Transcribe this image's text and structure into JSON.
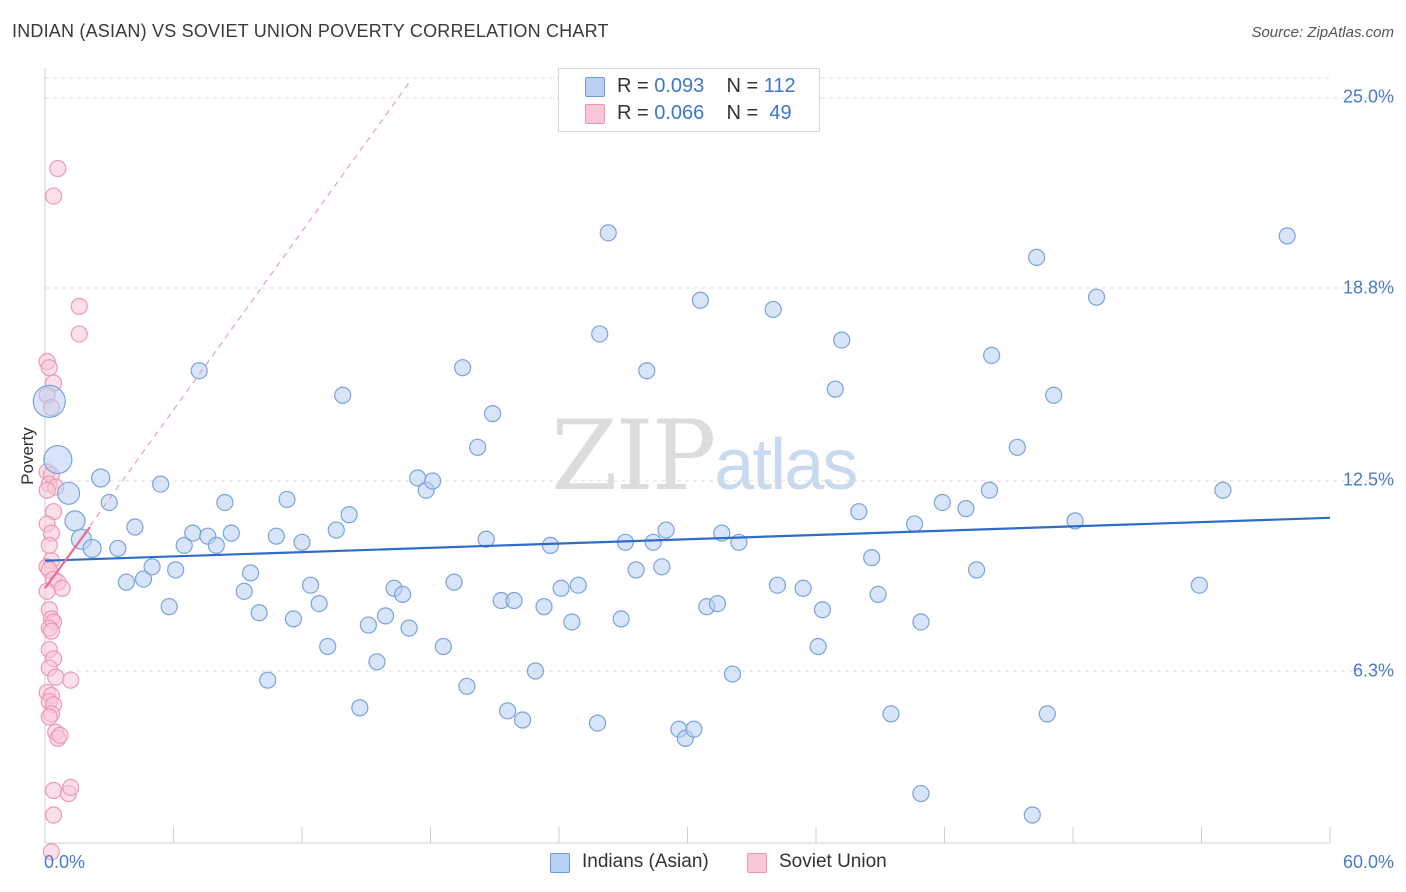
{
  "title": "INDIAN (ASIAN) VS SOVIET UNION POVERTY CORRELATION CHART",
  "source": "Source: ZipAtlas.com",
  "watermark": {
    "zip": "ZIP",
    "atlas": "atlas"
  },
  "colors": {
    "blue": "#4a7cc7",
    "blue_fill": "#b8d0f2",
    "pink": "#e86b91",
    "pink_fill": "#f9c6d6",
    "grid": "#dcdcdc"
  },
  "legend": {
    "series1": {
      "r_label": "R = ",
      "r_value": "0.093",
      "n_label": "N = ",
      "n_value": "112"
    },
    "series2": {
      "r_label": "R = ",
      "r_value": "0.066",
      "n_label": "N = ",
      "n_value": "49"
    }
  },
  "chart_data": {
    "type": "scatter",
    "title": "INDIAN (ASIAN) VS SOVIET UNION POVERTY CORRELATION CHART",
    "xlabel": "",
    "ylabel": "Poverty",
    "xlim": [
      0,
      60
    ],
    "ylim": [
      0,
      26
    ],
    "x_tick_labels": [
      "0.0%",
      "60.0%"
    ],
    "y_ticks": [
      6.3,
      12.5,
      18.8,
      25.0
    ],
    "y_tick_labels": [
      "6.3%",
      "12.5%",
      "18.8%",
      "25.0%"
    ],
    "grid": true,
    "legend_position": "top-center",
    "series": [
      {
        "name": "Indians (Asian)",
        "color": "#4a7cc7",
        "r": 0.093,
        "n": 112,
        "trend": {
          "x": [
            0,
            60
          ],
          "y": [
            9.9,
            11.3
          ]
        },
        "points": [
          {
            "x": 0.2,
            "y": 15.1,
            "s": 16
          },
          {
            "x": 0.6,
            "y": 13.2,
            "s": 14
          },
          {
            "x": 1.1,
            "y": 12.1,
            "s": 11
          },
          {
            "x": 1.4,
            "y": 11.2,
            "s": 10
          },
          {
            "x": 1.7,
            "y": 10.6,
            "s": 10
          },
          {
            "x": 2.2,
            "y": 10.3,
            "s": 9
          },
          {
            "x": 2.6,
            "y": 12.6,
            "s": 9
          },
          {
            "x": 3.0,
            "y": 11.8,
            "s": 8
          },
          {
            "x": 3.4,
            "y": 10.3,
            "s": 8
          },
          {
            "x": 3.8,
            "y": 9.2,
            "s": 8
          },
          {
            "x": 4.2,
            "y": 11.0,
            "s": 8
          },
          {
            "x": 4.6,
            "y": 9.3,
            "s": 8
          },
          {
            "x": 5.0,
            "y": 9.7,
            "s": 8
          },
          {
            "x": 5.4,
            "y": 12.4,
            "s": 8
          },
          {
            "x": 5.8,
            "y": 8.4,
            "s": 8
          },
          {
            "x": 6.1,
            "y": 9.6,
            "s": 8
          },
          {
            "x": 6.5,
            "y": 10.4,
            "s": 8
          },
          {
            "x": 6.9,
            "y": 10.8,
            "s": 8
          },
          {
            "x": 7.2,
            "y": 16.1,
            "s": 8
          },
          {
            "x": 7.6,
            "y": 10.7,
            "s": 8
          },
          {
            "x": 8.0,
            "y": 10.4,
            "s": 8
          },
          {
            "x": 8.4,
            "y": 11.8,
            "s": 8
          },
          {
            "x": 8.7,
            "y": 10.8,
            "s": 8
          },
          {
            "x": 9.3,
            "y": 8.9,
            "s": 8
          },
          {
            "x": 9.6,
            "y": 9.5,
            "s": 8
          },
          {
            "x": 10.0,
            "y": 8.2,
            "s": 8
          },
          {
            "x": 10.4,
            "y": 6.0,
            "s": 8
          },
          {
            "x": 10.8,
            "y": 10.7,
            "s": 8
          },
          {
            "x": 11.3,
            "y": 11.9,
            "s": 8
          },
          {
            "x": 11.6,
            "y": 8.0,
            "s": 8
          },
          {
            "x": 12.0,
            "y": 10.5,
            "s": 8
          },
          {
            "x": 12.4,
            "y": 9.1,
            "s": 8
          },
          {
            "x": 12.8,
            "y": 8.5,
            "s": 8
          },
          {
            "x": 13.2,
            "y": 7.1,
            "s": 8
          },
          {
            "x": 13.6,
            "y": 10.9,
            "s": 8
          },
          {
            "x": 13.9,
            "y": 15.3,
            "s": 8
          },
          {
            "x": 14.2,
            "y": 11.4,
            "s": 8
          },
          {
            "x": 14.7,
            "y": 5.1,
            "s": 8
          },
          {
            "x": 15.1,
            "y": 7.8,
            "s": 8
          },
          {
            "x": 15.5,
            "y": 6.6,
            "s": 8
          },
          {
            "x": 15.9,
            "y": 8.1,
            "s": 8
          },
          {
            "x": 16.3,
            "y": 9.0,
            "s": 8
          },
          {
            "x": 16.7,
            "y": 8.8,
            "s": 8
          },
          {
            "x": 17.0,
            "y": 7.7,
            "s": 8
          },
          {
            "x": 17.4,
            "y": 12.6,
            "s": 8
          },
          {
            "x": 17.8,
            "y": 12.2,
            "s": 8
          },
          {
            "x": 18.1,
            "y": 12.5,
            "s": 8
          },
          {
            "x": 18.6,
            "y": 7.1,
            "s": 8
          },
          {
            "x": 19.1,
            "y": 9.2,
            "s": 8
          },
          {
            "x": 19.5,
            "y": 16.2,
            "s": 8
          },
          {
            "x": 19.7,
            "y": 5.8,
            "s": 8
          },
          {
            "x": 20.2,
            "y": 13.6,
            "s": 8
          },
          {
            "x": 20.6,
            "y": 10.6,
            "s": 8
          },
          {
            "x": 20.9,
            "y": 14.7,
            "s": 8
          },
          {
            "x": 21.3,
            "y": 8.6,
            "s": 8
          },
          {
            "x": 21.6,
            "y": 5.0,
            "s": 8
          },
          {
            "x": 21.9,
            "y": 8.6,
            "s": 8
          },
          {
            "x": 22.3,
            "y": 4.7,
            "s": 8
          },
          {
            "x": 22.9,
            "y": 6.3,
            "s": 8
          },
          {
            "x": 23.3,
            "y": 8.4,
            "s": 8
          },
          {
            "x": 23.6,
            "y": 10.4,
            "s": 8
          },
          {
            "x": 24.1,
            "y": 9.0,
            "s": 8
          },
          {
            "x": 24.6,
            "y": 7.9,
            "s": 8
          },
          {
            "x": 24.9,
            "y": 9.1,
            "s": 8
          },
          {
            "x": 25.8,
            "y": 4.6,
            "s": 8
          },
          {
            "x": 25.9,
            "y": 17.3,
            "s": 8
          },
          {
            "x": 26.3,
            "y": 20.6,
            "s": 8
          },
          {
            "x": 26.9,
            "y": 8.0,
            "s": 8
          },
          {
            "x": 27.1,
            "y": 10.5,
            "s": 8
          },
          {
            "x": 27.6,
            "y": 9.6,
            "s": 8
          },
          {
            "x": 28.1,
            "y": 16.1,
            "s": 8
          },
          {
            "x": 28.4,
            "y": 10.5,
            "s": 8
          },
          {
            "x": 28.8,
            "y": 9.7,
            "s": 8
          },
          {
            "x": 29.0,
            "y": 10.9,
            "s": 8
          },
          {
            "x": 29.6,
            "y": 4.4,
            "s": 8
          },
          {
            "x": 29.9,
            "y": 4.1,
            "s": 8
          },
          {
            "x": 30.3,
            "y": 4.4,
            "s": 8
          },
          {
            "x": 30.6,
            "y": 18.4,
            "s": 8
          },
          {
            "x": 30.9,
            "y": 8.4,
            "s": 8
          },
          {
            "x": 31.4,
            "y": 8.5,
            "s": 8
          },
          {
            "x": 31.6,
            "y": 10.8,
            "s": 8
          },
          {
            "x": 32.1,
            "y": 6.2,
            "s": 8
          },
          {
            "x": 32.4,
            "y": 10.5,
            "s": 8
          },
          {
            "x": 34.0,
            "y": 18.1,
            "s": 8
          },
          {
            "x": 34.2,
            "y": 9.1,
            "s": 8
          },
          {
            "x": 35.4,
            "y": 9.0,
            "s": 8
          },
          {
            "x": 36.1,
            "y": 7.1,
            "s": 8
          },
          {
            "x": 36.3,
            "y": 8.3,
            "s": 8
          },
          {
            "x": 36.9,
            "y": 15.5,
            "s": 8
          },
          {
            "x": 37.2,
            "y": 17.1,
            "s": 8
          },
          {
            "x": 38.0,
            "y": 11.5,
            "s": 8
          },
          {
            "x": 38.6,
            "y": 10.0,
            "s": 8
          },
          {
            "x": 38.9,
            "y": 8.8,
            "s": 8
          },
          {
            "x": 39.5,
            "y": 4.9,
            "s": 8
          },
          {
            "x": 40.6,
            "y": 11.1,
            "s": 8
          },
          {
            "x": 40.9,
            "y": 7.9,
            "s": 8
          },
          {
            "x": 40.9,
            "y": 2.3,
            "s": 8
          },
          {
            "x": 41.9,
            "y": 11.8,
            "s": 8
          },
          {
            "x": 43.0,
            "y": 11.6,
            "s": 8
          },
          {
            "x": 43.5,
            "y": 9.6,
            "s": 8
          },
          {
            "x": 44.1,
            "y": 12.2,
            "s": 8
          },
          {
            "x": 44.2,
            "y": 16.6,
            "s": 8
          },
          {
            "x": 45.4,
            "y": 13.6,
            "s": 8
          },
          {
            "x": 46.1,
            "y": 1.6,
            "s": 8
          },
          {
            "x": 46.3,
            "y": 19.8,
            "s": 8
          },
          {
            "x": 46.8,
            "y": 4.9,
            "s": 8
          },
          {
            "x": 47.1,
            "y": 15.3,
            "s": 8
          },
          {
            "x": 48.1,
            "y": 11.2,
            "s": 8
          },
          {
            "x": 49.1,
            "y": 18.5,
            "s": 8
          },
          {
            "x": 53.9,
            "y": 9.1,
            "s": 8
          },
          {
            "x": 55.0,
            "y": 12.2,
            "s": 8
          },
          {
            "x": 58.0,
            "y": 20.5,
            "s": 8
          }
        ]
      },
      {
        "name": "Soviet Union",
        "color": "#e86b91",
        "r": 0.066,
        "n": 49,
        "trend": {
          "x": [
            0,
            2.1
          ],
          "y": [
            9.0,
            11.0
          ]
        },
        "trend_extended": {
          "x": [
            0,
            17.0
          ],
          "y": [
            9.0,
            25.5
          ]
        },
        "points": [
          {
            "x": 0.6,
            "y": 22.7,
            "s": 8
          },
          {
            "x": 0.4,
            "y": 21.8,
            "s": 8
          },
          {
            "x": 1.6,
            "y": 18.2,
            "s": 8
          },
          {
            "x": 1.6,
            "y": 17.3,
            "s": 8
          },
          {
            "x": 0.1,
            "y": 16.4,
            "s": 8
          },
          {
            "x": 0.2,
            "y": 16.2,
            "s": 8
          },
          {
            "x": 0.4,
            "y": 15.7,
            "s": 8
          },
          {
            "x": 0.1,
            "y": 15.3,
            "s": 8
          },
          {
            "x": 0.3,
            "y": 14.9,
            "s": 8
          },
          {
            "x": 0.1,
            "y": 12.8,
            "s": 8
          },
          {
            "x": 0.3,
            "y": 12.7,
            "s": 8
          },
          {
            "x": 0.2,
            "y": 12.4,
            "s": 8
          },
          {
            "x": 0.5,
            "y": 12.3,
            "s": 8
          },
          {
            "x": 0.1,
            "y": 12.2,
            "s": 8
          },
          {
            "x": 0.4,
            "y": 11.5,
            "s": 8
          },
          {
            "x": 0.1,
            "y": 11.1,
            "s": 8
          },
          {
            "x": 0.3,
            "y": 10.8,
            "s": 8
          },
          {
            "x": 0.2,
            "y": 10.4,
            "s": 8
          },
          {
            "x": 0.3,
            "y": 9.9,
            "s": 8
          },
          {
            "x": 0.1,
            "y": 9.7,
            "s": 8
          },
          {
            "x": 0.2,
            "y": 9.6,
            "s": 8
          },
          {
            "x": 0.4,
            "y": 9.3,
            "s": 8
          },
          {
            "x": 0.6,
            "y": 9.2,
            "s": 8
          },
          {
            "x": 0.8,
            "y": 9.0,
            "s": 8
          },
          {
            "x": 0.1,
            "y": 8.9,
            "s": 8
          },
          {
            "x": 0.2,
            "y": 8.3,
            "s": 8
          },
          {
            "x": 0.3,
            "y": 8.0,
            "s": 8
          },
          {
            "x": 0.4,
            "y": 7.9,
            "s": 8
          },
          {
            "x": 0.2,
            "y": 7.7,
            "s": 8
          },
          {
            "x": 0.3,
            "y": 7.6,
            "s": 8
          },
          {
            "x": 0.2,
            "y": 7.0,
            "s": 8
          },
          {
            "x": 0.4,
            "y": 6.7,
            "s": 8
          },
          {
            "x": 0.2,
            "y": 6.4,
            "s": 8
          },
          {
            "x": 0.5,
            "y": 6.1,
            "s": 8
          },
          {
            "x": 1.2,
            "y": 6.0,
            "s": 8
          },
          {
            "x": 0.1,
            "y": 5.6,
            "s": 8
          },
          {
            "x": 0.3,
            "y": 5.5,
            "s": 8
          },
          {
            "x": 0.2,
            "y": 5.3,
            "s": 8
          },
          {
            "x": 0.4,
            "y": 5.2,
            "s": 8
          },
          {
            "x": 0.3,
            "y": 4.9,
            "s": 8
          },
          {
            "x": 0.2,
            "y": 4.8,
            "s": 8
          },
          {
            "x": 0.5,
            "y": 4.3,
            "s": 8
          },
          {
            "x": 0.6,
            "y": 4.1,
            "s": 8
          },
          {
            "x": 0.7,
            "y": 4.2,
            "s": 8
          },
          {
            "x": 0.4,
            "y": 2.4,
            "s": 8
          },
          {
            "x": 1.1,
            "y": 2.3,
            "s": 8
          },
          {
            "x": 1.2,
            "y": 2.5,
            "s": 8
          },
          {
            "x": 0.4,
            "y": 1.6,
            "s": 8
          },
          {
            "x": 0.3,
            "y": 0.4,
            "s": 8
          }
        ]
      }
    ]
  }
}
